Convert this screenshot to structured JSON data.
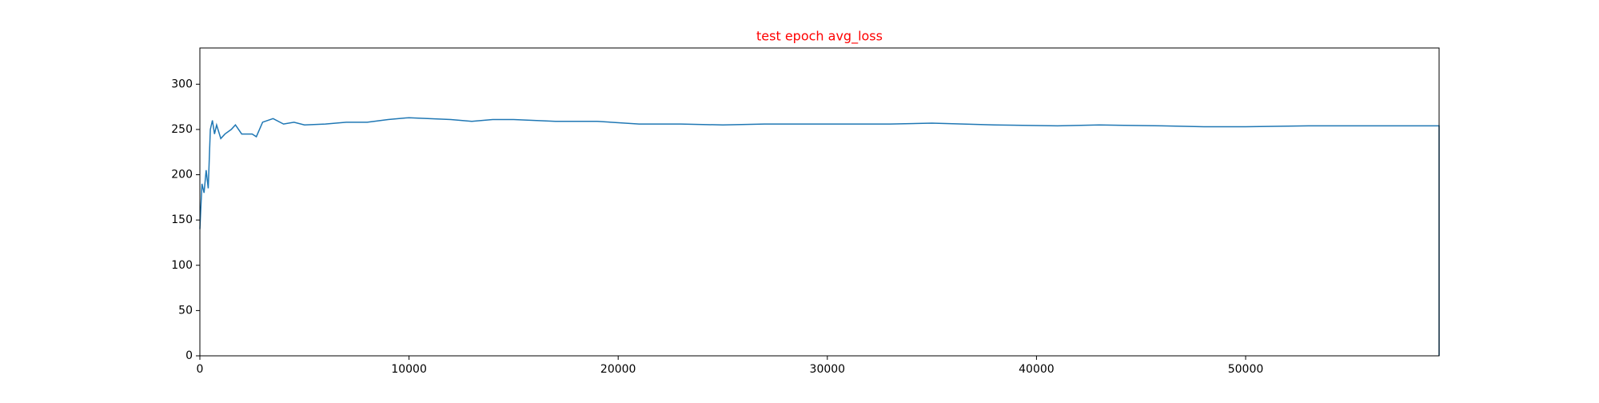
{
  "chart_data": {
    "type": "line",
    "title": "test epoch avg_loss",
    "title_color": "#ff0000",
    "x": [
      0,
      100,
      200,
      300,
      400,
      500,
      600,
      700,
      800,
      1000,
      1200,
      1500,
      1700,
      2000,
      2500,
      2700,
      3000,
      3500,
      4000,
      4500,
      5000,
      6000,
      7000,
      8000,
      9000,
      10000,
      11000,
      12000,
      13000,
      14000,
      15000,
      17000,
      19000,
      21000,
      23000,
      25000,
      27000,
      30000,
      33000,
      35000,
      38000,
      41000,
      43000,
      46000,
      48000,
      50000,
      53000,
      56000,
      59000,
      59250,
      59250
    ],
    "series": [
      {
        "color": "#1f77b4",
        "values": [
          140,
          190,
          180,
          205,
          185,
          250,
          260,
          245,
          255,
          240,
          245,
          250,
          255,
          245,
          245,
          242,
          258,
          262,
          256,
          258,
          255,
          256,
          258,
          258,
          261,
          263,
          262,
          261,
          259,
          261,
          261,
          259,
          259,
          256,
          256,
          255,
          256,
          256,
          256,
          257,
          255,
          254,
          255,
          254,
          253,
          253,
          254,
          254,
          254,
          254,
          0
        ]
      }
    ],
    "xlim": [
      0,
      59250
    ],
    "xticks": [
      0,
      10000,
      20000,
      30000,
      40000,
      50000
    ],
    "ylim": [
      0,
      340
    ],
    "yticks": [
      0,
      50,
      100,
      150,
      200,
      250,
      300
    ]
  }
}
